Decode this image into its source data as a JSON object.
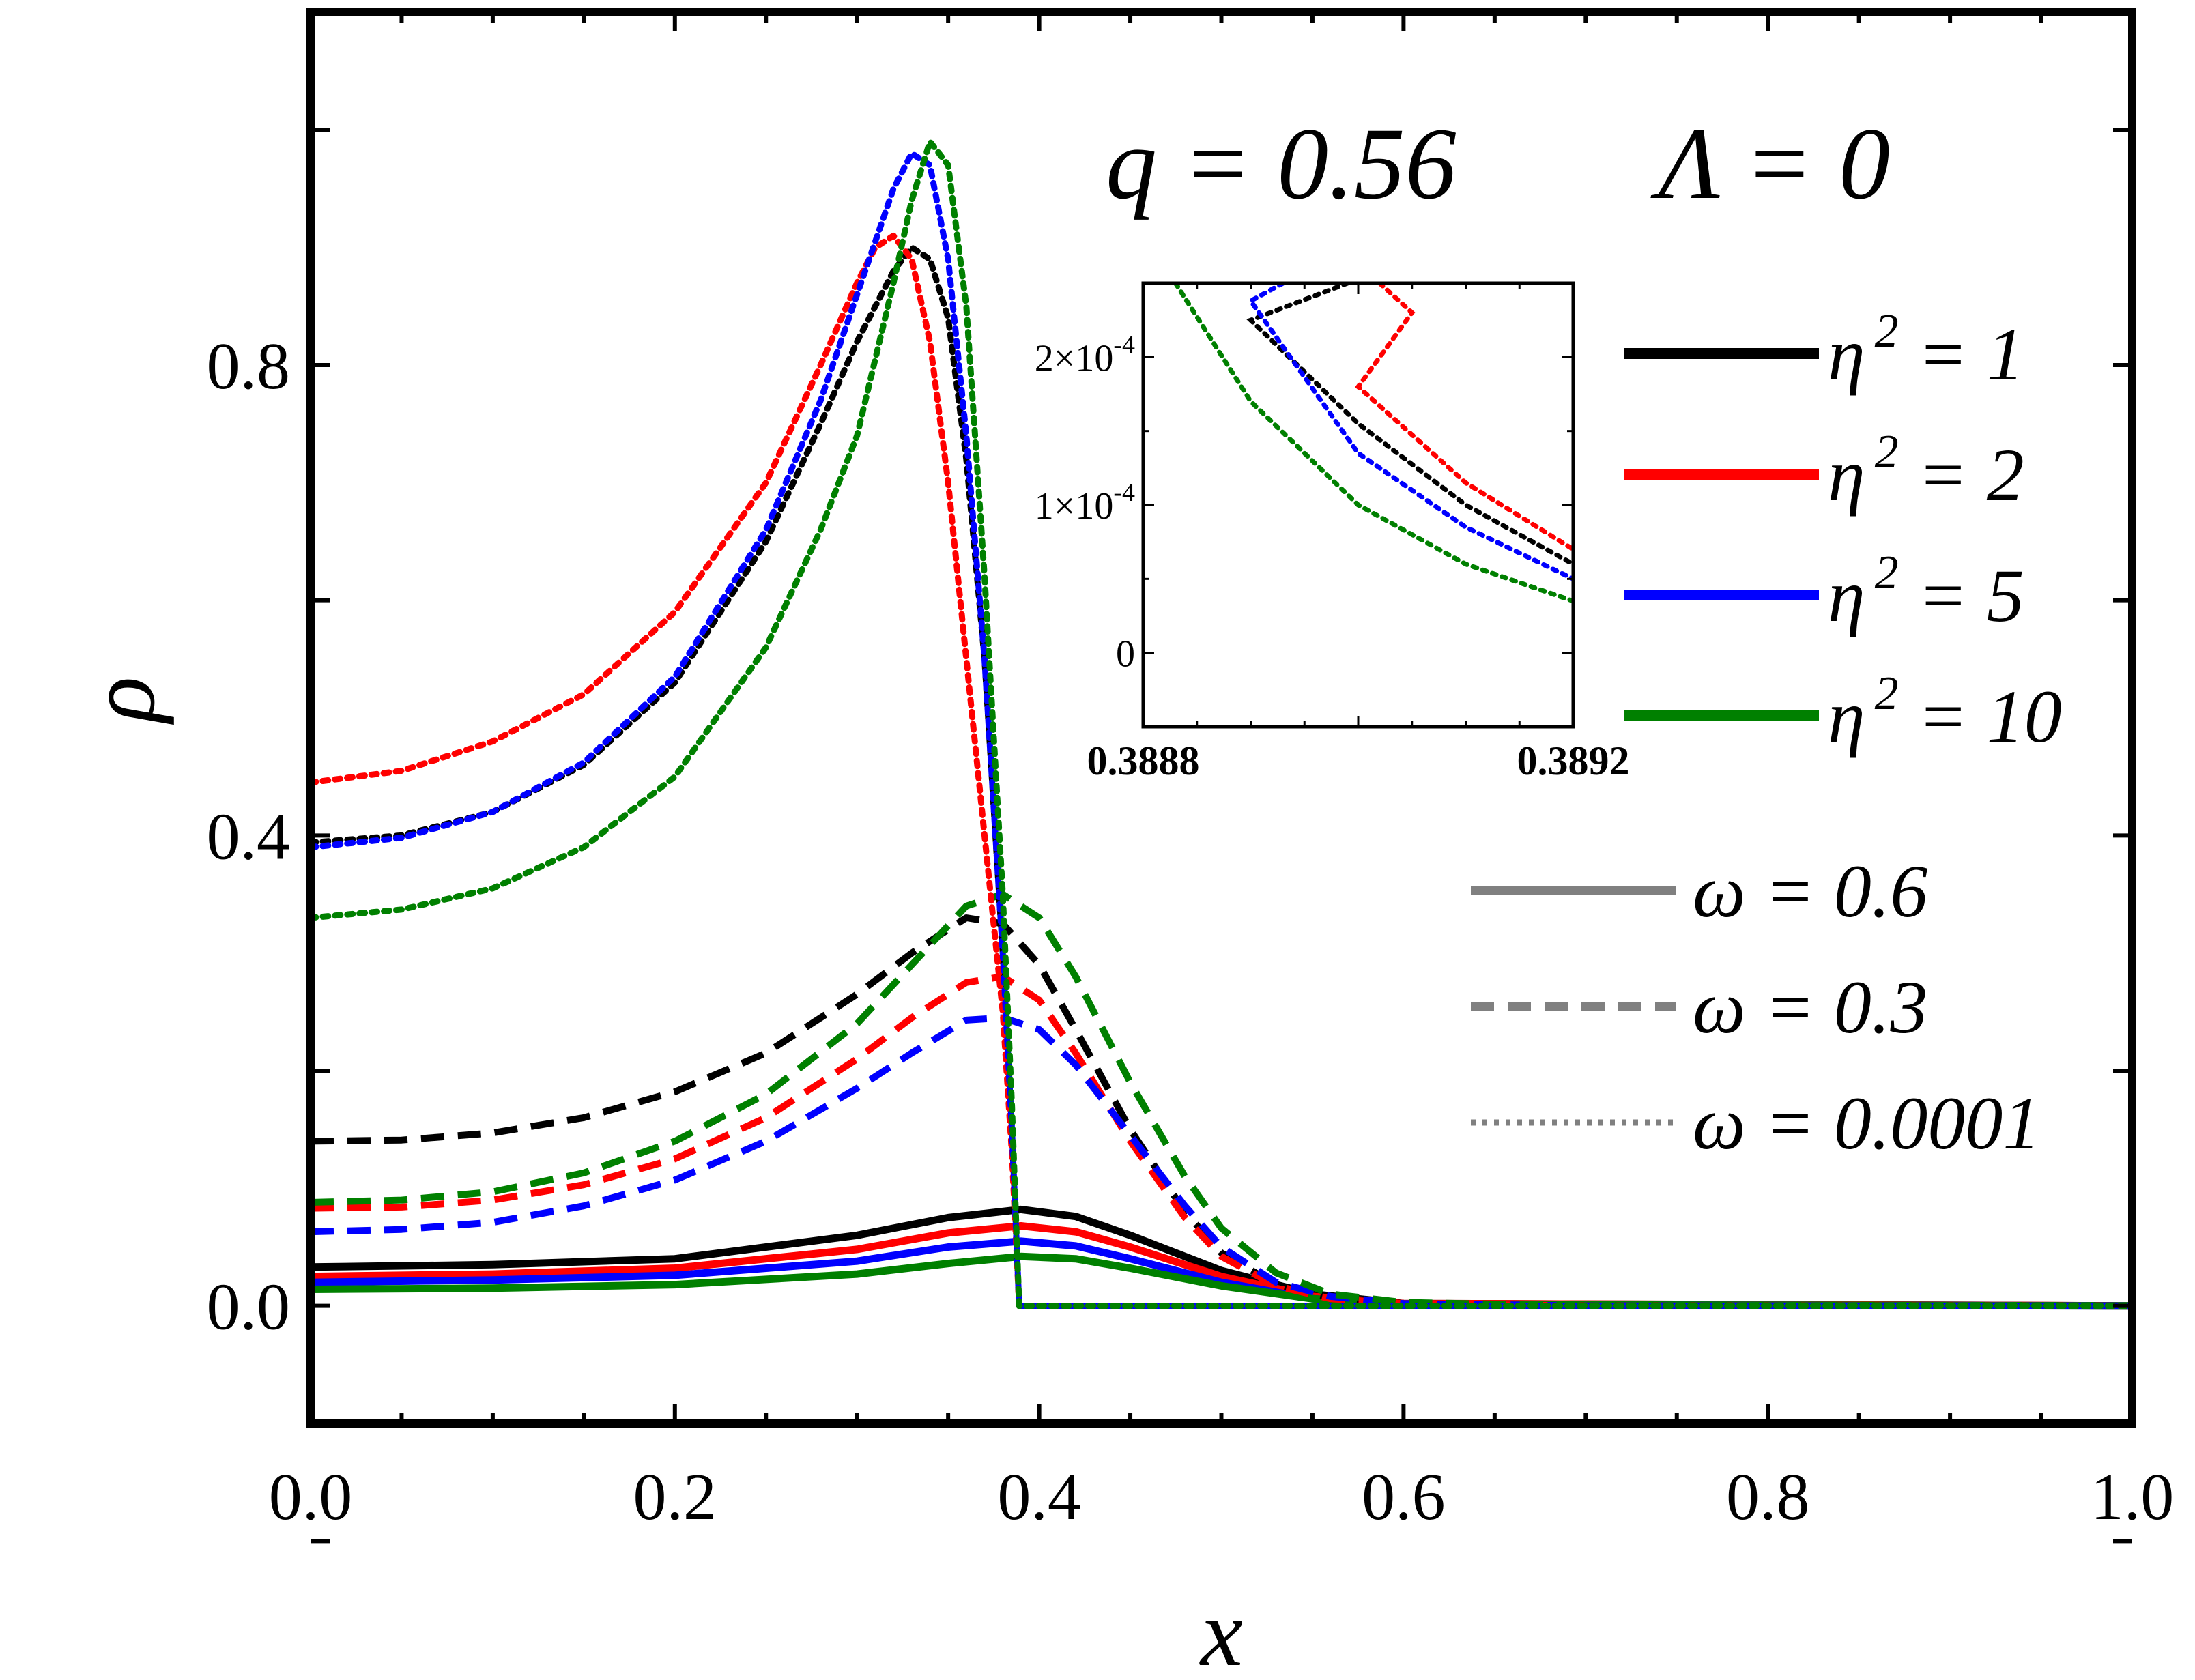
{
  "chart_data": {
    "type": "line",
    "xlabel": "x",
    "ylabel": "ρ",
    "xlim": [
      0,
      1
    ],
    "ylim": [
      -0.1,
      1.1
    ],
    "x_ticks": [
      "0.0",
      "0.2",
      "0.4",
      "0.6",
      "0.8",
      "1.0"
    ],
    "y_ticks": [
      "0.0",
      "0.4",
      "0.8"
    ],
    "annotations": {
      "q": "q = 0.56",
      "lambda": "Λ = 0"
    },
    "color_legend": [
      {
        "label": "η",
        "sup": "2",
        "value": " = 1",
        "color": "#000000"
      },
      {
        "label": "η",
        "sup": "2",
        "value": " = 2",
        "color": "#ff0000"
      },
      {
        "label": "η",
        "sup": "2",
        "value": " = 5",
        "color": "#0000ff"
      },
      {
        "label": "η",
        "sup": "2",
        "value": " = 10",
        "color": "#008000"
      }
    ],
    "style_legend": [
      {
        "label": "ω = 0.6",
        "style": "solid"
      },
      {
        "label": "ω = 0.3",
        "style": "dashed"
      },
      {
        "label": "ω = 0.0001",
        "style": "dotted"
      }
    ],
    "legend_line_color": "#808080",
    "series": [
      {
        "name": "η²=1, ω=0.6",
        "color": "#000000",
        "style": "solid",
        "x": [
          0,
          0.1,
          0.2,
          0.3,
          0.35,
          0.39,
          0.42,
          0.45,
          0.5,
          0.55,
          0.6,
          1.0
        ],
        "y": [
          0.033,
          0.035,
          0.04,
          0.06,
          0.075,
          0.082,
          0.076,
          0.06,
          0.03,
          0.01,
          0.002,
          0.0
        ]
      },
      {
        "name": "η²=2, ω=0.6",
        "color": "#ff0000",
        "style": "solid",
        "x": [
          0,
          0.1,
          0.2,
          0.3,
          0.35,
          0.39,
          0.42,
          0.45,
          0.5,
          0.55,
          0.6,
          1.0
        ],
        "y": [
          0.025,
          0.027,
          0.032,
          0.048,
          0.062,
          0.068,
          0.063,
          0.05,
          0.025,
          0.008,
          0.002,
          0.0
        ]
      },
      {
        "name": "η²=5, ω=0.6",
        "color": "#0000ff",
        "style": "solid",
        "x": [
          0,
          0.1,
          0.2,
          0.3,
          0.35,
          0.39,
          0.42,
          0.45,
          0.5,
          0.55,
          0.6,
          1.0
        ],
        "y": [
          0.02,
          0.022,
          0.026,
          0.038,
          0.05,
          0.055,
          0.051,
          0.04,
          0.02,
          0.006,
          0.001,
          0.0
        ]
      },
      {
        "name": "η²=10, ω=0.6",
        "color": "#008000",
        "style": "solid",
        "x": [
          0,
          0.1,
          0.2,
          0.3,
          0.35,
          0.39,
          0.42,
          0.45,
          0.5,
          0.55,
          0.6,
          1.0
        ],
        "y": [
          0.014,
          0.015,
          0.018,
          0.027,
          0.036,
          0.042,
          0.04,
          0.032,
          0.017,
          0.006,
          0.001,
          0.0
        ]
      },
      {
        "name": "η²=1, ω=0.3",
        "color": "#000000",
        "style": "dashed",
        "x": [
          0,
          0.05,
          0.1,
          0.15,
          0.2,
          0.25,
          0.3,
          0.33,
          0.36,
          0.38,
          0.4,
          0.42,
          0.45,
          0.48,
          0.5,
          0.53,
          0.56,
          0.6,
          0.7,
          1.0
        ],
        "y": [
          0.14,
          0.141,
          0.147,
          0.16,
          0.182,
          0.215,
          0.265,
          0.3,
          0.33,
          0.325,
          0.29,
          0.235,
          0.15,
          0.08,
          0.045,
          0.018,
          0.007,
          0.002,
          0.0,
          0.0
        ]
      },
      {
        "name": "η²=2, ω=0.3",
        "color": "#ff0000",
        "style": "dashed",
        "x": [
          0,
          0.05,
          0.1,
          0.15,
          0.2,
          0.25,
          0.3,
          0.33,
          0.36,
          0.38,
          0.4,
          0.42,
          0.45,
          0.48,
          0.5,
          0.53,
          0.56,
          0.6,
          0.7,
          1.0
        ],
        "y": [
          0.083,
          0.084,
          0.09,
          0.103,
          0.125,
          0.16,
          0.21,
          0.245,
          0.275,
          0.28,
          0.26,
          0.215,
          0.14,
          0.075,
          0.042,
          0.017,
          0.006,
          0.002,
          0.0,
          0.0
        ]
      },
      {
        "name": "η²=5, ω=0.3",
        "color": "#0000ff",
        "style": "dashed",
        "x": [
          0,
          0.05,
          0.1,
          0.15,
          0.2,
          0.25,
          0.3,
          0.33,
          0.36,
          0.38,
          0.4,
          0.42,
          0.45,
          0.48,
          0.5,
          0.53,
          0.56,
          0.6,
          0.7,
          1.0
        ],
        "y": [
          0.063,
          0.065,
          0.071,
          0.085,
          0.107,
          0.14,
          0.185,
          0.215,
          0.243,
          0.245,
          0.235,
          0.205,
          0.145,
          0.085,
          0.05,
          0.02,
          0.008,
          0.002,
          0.0,
          0.0
        ]
      },
      {
        "name": "η²=10, ω=0.3",
        "color": "#008000",
        "style": "dashed",
        "x": [
          0,
          0.05,
          0.1,
          0.15,
          0.2,
          0.25,
          0.3,
          0.33,
          0.36,
          0.38,
          0.4,
          0.42,
          0.45,
          0.48,
          0.5,
          0.53,
          0.56,
          0.6,
          0.7,
          1.0
        ],
        "y": [
          0.088,
          0.09,
          0.097,
          0.113,
          0.14,
          0.18,
          0.24,
          0.29,
          0.34,
          0.35,
          0.33,
          0.28,
          0.19,
          0.11,
          0.066,
          0.028,
          0.01,
          0.003,
          0.0,
          0.0
        ]
      },
      {
        "name": "η²=1, ω=0.0001",
        "color": "#000000",
        "style": "dotted",
        "x": [
          0,
          0.05,
          0.1,
          0.15,
          0.2,
          0.25,
          0.28,
          0.3,
          0.32,
          0.33,
          0.34,
          0.35,
          0.36,
          0.37,
          0.38,
          0.385,
          0.389,
          0.395,
          0.45,
          1.0
        ],
        "y": [
          0.394,
          0.4,
          0.42,
          0.46,
          0.53,
          0.65,
          0.75,
          0.82,
          0.88,
          0.9,
          0.89,
          0.84,
          0.72,
          0.55,
          0.3,
          0.15,
          0.0,
          0.0,
          0.0,
          0.0
        ]
      },
      {
        "name": "η²=2, ω=0.0001",
        "color": "#ff0000",
        "style": "dotted",
        "x": [
          0,
          0.05,
          0.1,
          0.15,
          0.2,
          0.25,
          0.28,
          0.3,
          0.31,
          0.32,
          0.33,
          0.34,
          0.35,
          0.36,
          0.37,
          0.38,
          0.385,
          0.389,
          0.395,
          0.45,
          1.0
        ],
        "y": [
          0.445,
          0.455,
          0.48,
          0.52,
          0.59,
          0.7,
          0.8,
          0.87,
          0.9,
          0.91,
          0.89,
          0.82,
          0.7,
          0.55,
          0.4,
          0.25,
          0.13,
          0.0,
          0.0,
          0.0,
          0.0
        ]
      },
      {
        "name": "η²=5, ω=0.0001",
        "color": "#0000ff",
        "style": "dotted",
        "x": [
          0,
          0.05,
          0.1,
          0.15,
          0.2,
          0.25,
          0.28,
          0.3,
          0.32,
          0.33,
          0.34,
          0.35,
          0.36,
          0.37,
          0.38,
          0.385,
          0.389,
          0.395,
          0.45,
          1.0
        ],
        "y": [
          0.39,
          0.398,
          0.42,
          0.462,
          0.535,
          0.66,
          0.77,
          0.86,
          0.95,
          0.98,
          0.97,
          0.89,
          0.74,
          0.55,
          0.3,
          0.15,
          0.0,
          0.0,
          0.0,
          0.0
        ]
      },
      {
        "name": "η²=10, ω=0.0001",
        "color": "#008000",
        "style": "dotted",
        "x": [
          0,
          0.05,
          0.1,
          0.15,
          0.2,
          0.25,
          0.28,
          0.3,
          0.32,
          0.33,
          0.34,
          0.35,
          0.36,
          0.37,
          0.38,
          0.385,
          0.389,
          0.395,
          0.45,
          1.0
        ],
        "y": [
          0.33,
          0.337,
          0.355,
          0.39,
          0.45,
          0.56,
          0.66,
          0.74,
          0.87,
          0.94,
          0.99,
          0.97,
          0.85,
          0.62,
          0.35,
          0.17,
          0.0,
          0.0,
          0.0,
          0.0
        ]
      }
    ],
    "inset": {
      "xlim": [
        0.3888,
        0.3892
      ],
      "ylim": [
        -5e-05,
        0.00025
      ],
      "x_ticks": [
        "0.3888",
        "0.3892"
      ],
      "y_tick_labels": [
        {
          "mantissa": "2×10",
          "exp": "-4"
        },
        {
          "mantissa": "1×10",
          "exp": "-4"
        },
        {
          "mantissa": "0",
          "exp": ""
        }
      ],
      "y_tick_values": [
        0.0002,
        0.0001,
        0
      ],
      "series": [
        {
          "color": "#000000",
          "x": [
            0.38899,
            0.3889,
            0.389,
            0.3891,
            0.3892
          ],
          "y": [
            0.00025,
            0.000225,
            0.000155,
            0.0001,
            6e-05
          ]
        },
        {
          "color": "#ff0000",
          "x": [
            0.38902,
            0.38905,
            0.389,
            0.3891,
            0.3892
          ],
          "y": [
            0.00025,
            0.00023,
            0.00018,
            0.000115,
            7e-05
          ]
        },
        {
          "color": "#0000ff",
          "x": [
            0.38893,
            0.3889,
            0.389,
            0.3891,
            0.3892
          ],
          "y": [
            0.00025,
            0.000238,
            0.000135,
            8.5e-05,
            5e-05
          ]
        },
        {
          "color": "#008000",
          "x": [
            0.38883,
            0.3889,
            0.389,
            0.3891,
            0.3892
          ],
          "y": [
            0.00025,
            0.00017,
            0.0001,
            6e-05,
            3.5e-05
          ]
        }
      ]
    }
  }
}
